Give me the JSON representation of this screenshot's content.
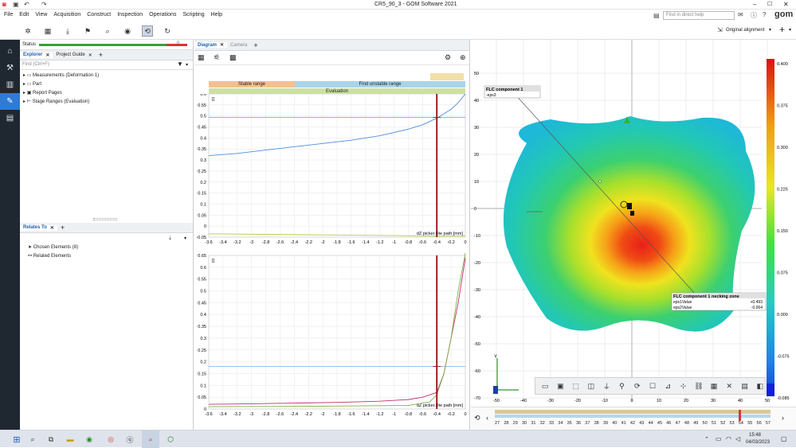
{
  "window": {
    "title": "CR5_90_3 - GOM Software 2021",
    "minimize": "–",
    "maximize": "☐",
    "close": "✕"
  },
  "menu": [
    "File",
    "Edit",
    "View",
    "Acquisition",
    "Construct",
    "Inspection",
    "Operations",
    "Scripting",
    "Help"
  ],
  "help_search": {
    "placeholder": "Find in direct help"
  },
  "brand": "gom",
  "alignment": {
    "label": "Original alignment"
  },
  "status": {
    "label": "Status",
    "count": "0"
  },
  "explorer": {
    "tabs": [
      "Explorer",
      "Project Guide"
    ],
    "search_placeholder": "Find (Ctrl+F)",
    "items": [
      "Measurements (Deformation 1)",
      "Part",
      "Report Pages",
      "Stage Ranges (Evaluation)"
    ]
  },
  "relates": {
    "tab": "Relates To",
    "items": [
      "Chosen Elements (8)",
      "Related Elements"
    ]
  },
  "chart_tabs": [
    "Diagram",
    "Camera"
  ],
  "ranges": {
    "stable": "Stable range",
    "unstable": "Find unstable range",
    "evaluation": "Evaluation"
  },
  "chart_data": [
    {
      "type": "line",
      "ylabel": "[]",
      "xlabel": "dZ picker.Die path [mm]",
      "xlim": [
        -3.6,
        0
      ],
      "ylim": [
        -0.05,
        0.6
      ],
      "xticks": [
        "-3.6",
        "-3.4",
        "-3.2",
        "-3",
        "-2.8",
        "-2.6",
        "-2.4",
        "-2.2",
        "-2",
        "-1.8",
        "-1.6",
        "-1.4",
        "-1.2",
        "-1",
        "-0.8",
        "-0.6",
        "-0.4",
        "-0.2",
        "0"
      ],
      "yticks": [
        "0.6",
        "0.55",
        "0.5",
        "0.45",
        "0.4",
        "0.35",
        "0.3",
        "0.25",
        "0.2",
        "0.15",
        "0.1",
        "0.05",
        "0",
        "-0.05"
      ],
      "series": [
        {
          "color": "#4d8fd9",
          "x": [
            -3.6,
            -3.2,
            -2.8,
            -2.4,
            -2.0,
            -1.6,
            -1.2,
            -0.8,
            -0.6,
            -0.4,
            -0.2,
            -0.1,
            0
          ],
          "y": [
            0.32,
            0.33,
            0.345,
            0.36,
            0.375,
            0.39,
            0.41,
            0.44,
            0.46,
            0.49,
            0.53,
            0.56,
            0.6
          ]
        },
        {
          "color": "#b8c94a",
          "x": [
            -3.6,
            -2.0,
            -0.4,
            0
          ],
          "y": [
            -0.035,
            -0.04,
            -0.045,
            -0.045
          ]
        }
      ],
      "hline": 0.493,
      "vline": -0.4
    },
    {
      "type": "line",
      "ylabel": "[]",
      "xlabel": "dZ picker.Die path [mm]",
      "xlim": [
        -3.6,
        0
      ],
      "ylim": [
        0,
        0.65
      ],
      "xticks": [
        "-3.6",
        "-3.4",
        "-3.2",
        "-3",
        "-2.8",
        "-2.6",
        "-2.4",
        "-2.2",
        "-2",
        "-1.8",
        "-1.6",
        "-1.4",
        "-1.2",
        "-1",
        "-0.8",
        "-0.6",
        "-0.4",
        "-0.2",
        "0"
      ],
      "yticks": [
        "0.65",
        "0.6",
        "0.55",
        "0.5",
        "0.45",
        "0.4",
        "0.35",
        "0.3",
        "0.25",
        "0.2",
        "0.15",
        "0.1",
        "0.05",
        "0"
      ],
      "series": [
        {
          "color": "#c0306e",
          "x": [
            -3.6,
            -3.0,
            -2.4,
            -1.8,
            -1.2,
            -0.8,
            -0.6,
            -0.4,
            -0.3,
            -0.2,
            -0.1,
            0
          ],
          "y": [
            0.02,
            0.022,
            0.025,
            0.028,
            0.033,
            0.04,
            0.05,
            0.07,
            0.15,
            0.3,
            0.45,
            0.64
          ]
        },
        {
          "color": "#7fb04a",
          "x": [
            -3.6,
            -2.0,
            -0.8,
            -0.5,
            -0.4,
            -0.3,
            -0.2,
            -0.1,
            0
          ],
          "y": [
            0.01,
            0.012,
            0.015,
            0.03,
            0.06,
            0.15,
            0.3,
            0.5,
            0.66
          ]
        }
      ],
      "hline": 0.18,
      "vline": -0.4
    }
  ],
  "view": {
    "flc1": {
      "title": "FLC component 1",
      "sub": "-eps3"
    },
    "flc2": {
      "title": "FLC component 1 necking zone",
      "rows": [
        {
          "k": "eps1Value",
          "v": "+0.493"
        },
        {
          "k": "eps2Value",
          "v": "-0.064"
        }
      ]
    },
    "yaxis": [
      "50",
      "40",
      "30",
      "20",
      "10",
      "0",
      "-10",
      "-20",
      "-30",
      "-40",
      "-50",
      "-60",
      "-70"
    ],
    "xaxis": [
      "-50",
      "-40",
      "-30",
      "-20",
      "-10",
      "0",
      "10",
      "20",
      "30",
      "40",
      "50"
    ],
    "legend": [
      "0.400",
      "0.375",
      "0.300",
      "0.225",
      "0.150",
      "0.075",
      "0.000",
      "-0.075",
      "-0.085"
    ],
    "axis_y_label": "Y"
  },
  "timeline": [
    "27",
    "28",
    "29",
    "30",
    "31",
    "32",
    "33",
    "34",
    "35",
    "36",
    "37",
    "38",
    "39",
    "40",
    "41",
    "42",
    "43",
    "44",
    "45",
    "46",
    "47",
    "48",
    "49",
    "50",
    "51",
    "52",
    "53",
    "54",
    "55",
    "56",
    "57"
  ],
  "clock": {
    "time": "15:48",
    "date": "04/03/2023"
  }
}
